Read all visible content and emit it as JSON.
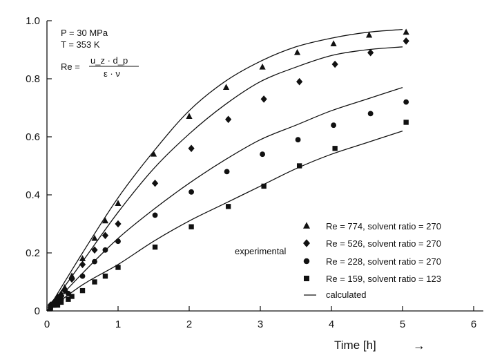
{
  "chart_data": {
    "type": "scatter",
    "title": "",
    "xlabel": "Time [h]",
    "xlabel_arrow": "→",
    "ylabel": "",
    "xlim": [
      0,
      6
    ],
    "ylim": [
      0,
      1.0
    ],
    "xticks": [
      "0",
      "1",
      "2",
      "3",
      "4",
      "5",
      "6"
    ],
    "yticks": [
      "0",
      "0.2",
      "0.4",
      "0.6",
      "0.8",
      "1.0"
    ],
    "grid": false,
    "legend_position": "bottom-right",
    "legend_group_label": "experimental",
    "annotations": {
      "pressure": "P = 30 MPa",
      "temperature": "T = 353 K",
      "re_prefix": "Re =",
      "re_numerator": "u_z · d_p",
      "re_denominator": "ε · ν"
    },
    "series": [
      {
        "name": "Re = 774, solvent ratio = 270",
        "marker": "triangle",
        "x": [
          0.05,
          0.1,
          0.15,
          0.2,
          0.25,
          0.35,
          0.5,
          0.67,
          0.82,
          1.0,
          1.5,
          2.0,
          2.52,
          3.03,
          3.52,
          4.03,
          4.53,
          5.05
        ],
        "y": [
          0.02,
          0.03,
          0.05,
          0.06,
          0.08,
          0.12,
          0.18,
          0.25,
          0.31,
          0.37,
          0.54,
          0.67,
          0.77,
          0.84,
          0.89,
          0.92,
          0.95,
          0.96
        ],
        "calc_x": [
          0,
          0.5,
          1,
          1.5,
          2,
          2.5,
          3,
          3.5,
          4,
          4.5,
          5
        ],
        "calc_y": [
          0,
          0.2,
          0.39,
          0.55,
          0.69,
          0.79,
          0.86,
          0.91,
          0.94,
          0.96,
          0.97
        ]
      },
      {
        "name": "Re = 526, solvent ratio = 270",
        "marker": "diamond",
        "x": [
          0.05,
          0.1,
          0.15,
          0.2,
          0.25,
          0.35,
          0.5,
          0.67,
          0.82,
          1.0,
          1.52,
          2.03,
          2.55,
          3.05,
          3.55,
          4.05,
          4.55,
          5.05
        ],
        "y": [
          0.02,
          0.03,
          0.04,
          0.05,
          0.07,
          0.11,
          0.16,
          0.21,
          0.26,
          0.3,
          0.44,
          0.56,
          0.66,
          0.73,
          0.79,
          0.85,
          0.89,
          0.93
        ],
        "calc_x": [
          0,
          0.5,
          1,
          1.5,
          2,
          2.5,
          3,
          3.5,
          4,
          4.5,
          5
        ],
        "calc_y": [
          0,
          0.17,
          0.34,
          0.49,
          0.61,
          0.71,
          0.79,
          0.84,
          0.88,
          0.9,
          0.91
        ]
      },
      {
        "name": "Re = 228, solvent ratio = 270",
        "marker": "circle",
        "x": [
          0.05,
          0.1,
          0.15,
          0.2,
          0.3,
          0.5,
          0.67,
          0.82,
          1.0,
          1.52,
          2.03,
          2.53,
          3.03,
          3.53,
          4.03,
          4.55,
          5.05
        ],
        "y": [
          0.01,
          0.02,
          0.03,
          0.04,
          0.06,
          0.12,
          0.17,
          0.21,
          0.24,
          0.33,
          0.41,
          0.48,
          0.54,
          0.59,
          0.64,
          0.68,
          0.72
        ],
        "calc_x": [
          0,
          0.5,
          1,
          1.5,
          2,
          2.5,
          3,
          3.5,
          4,
          4.5,
          5
        ],
        "calc_y": [
          0,
          0.13,
          0.25,
          0.35,
          0.44,
          0.52,
          0.59,
          0.64,
          0.69,
          0.73,
          0.77
        ]
      },
      {
        "name": "Re = 159, solvent ratio = 123",
        "marker": "square",
        "x": [
          0.05,
          0.1,
          0.15,
          0.2,
          0.3,
          0.35,
          0.5,
          0.67,
          0.82,
          1.0,
          1.52,
          2.03,
          2.55,
          3.05,
          3.55,
          4.05,
          5.05
        ],
        "y": [
          0.01,
          0.02,
          0.02,
          0.03,
          0.04,
          0.05,
          0.07,
          0.1,
          0.12,
          0.15,
          0.22,
          0.29,
          0.36,
          0.43,
          0.5,
          0.56,
          0.65
        ],
        "calc_x": [
          0,
          0.5,
          1,
          1.5,
          2,
          2.5,
          3,
          3.5,
          4,
          4.5,
          5
        ],
        "calc_y": [
          0,
          0.09,
          0.16,
          0.24,
          0.31,
          0.37,
          0.43,
          0.49,
          0.54,
          0.58,
          0.62
        ]
      }
    ],
    "calculated_label": "calculated"
  }
}
